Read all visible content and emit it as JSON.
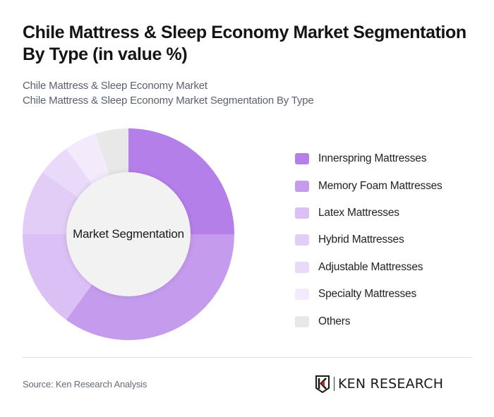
{
  "header": {
    "title": "Chile Mattress & Sleep Economy Market Segmentation By Type (in value %)",
    "subtitle_line1": "Chile Mattress & Sleep Economy Market",
    "subtitle_line2": "Chile Mattress & Sleep Economy Market Segmentation By Type"
  },
  "chart": {
    "center_label": "Market Segmentation"
  },
  "legend": {
    "items": [
      {
        "label": "Innerspring Mattresses",
        "color": "#b57fea"
      },
      {
        "label": "Memory Foam Mattresses",
        "color": "#c59bee"
      },
      {
        "label": "Latex Mattresses",
        "color": "#dbc0f6"
      },
      {
        "label": "Hybrid Mattresses",
        "color": "#e2cdf7"
      },
      {
        "label": "Adjustable Mattresses",
        "color": "#eadaf9"
      },
      {
        "label": "Specialty Mattresses",
        "color": "#f3ebfc"
      },
      {
        "label": "Others",
        "color": "#e8e8e8"
      }
    ]
  },
  "footer": {
    "source": "Source: Ken Research Analysis",
    "brand": "KEN RESEARCH"
  },
  "chart_data": {
    "type": "pie",
    "subtype": "donut",
    "title": "Chile Mattress & Sleep Economy Market Segmentation By Type (in value %)",
    "subtitle": [
      "Chile Mattress & Sleep Economy Market",
      "Chile Mattress & Sleep Economy Market Segmentation By Type"
    ],
    "center_label": "Market Segmentation",
    "categories": [
      "Innerspring Mattresses",
      "Memory Foam Mattresses",
      "Latex Mattresses",
      "Hybrid Mattresses",
      "Adjustable Mattresses",
      "Specialty Mattresses",
      "Others"
    ],
    "values": [
      25,
      35,
      15,
      10,
      5,
      5,
      5
    ],
    "colors": [
      "#b57fea",
      "#c59bee",
      "#dbc0f6",
      "#e2cdf7",
      "#eadaf9",
      "#f3ebfc",
      "#e8e8e8"
    ],
    "unit": "%",
    "start_angle": "12 o'clock, clockwise",
    "legend_position": "right",
    "data_labels": false
  }
}
